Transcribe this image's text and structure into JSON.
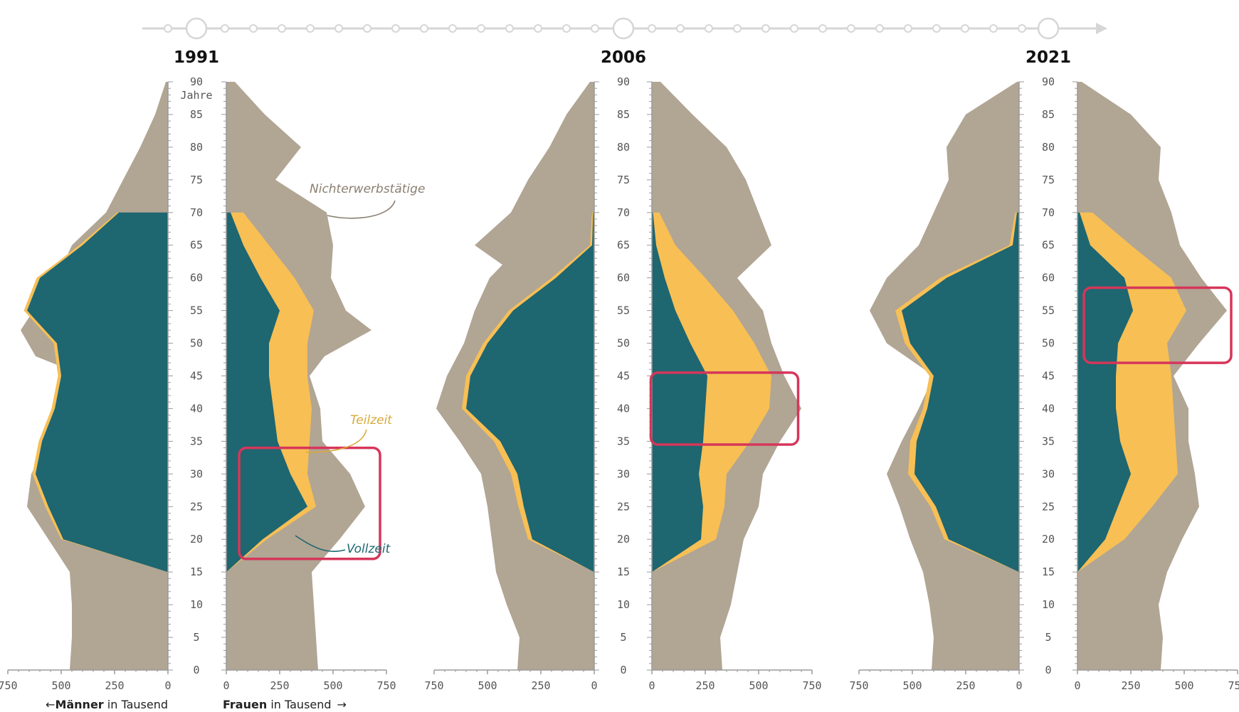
{
  "chart_data": {
    "type": "area",
    "layout": "population-pyramids",
    "colors": {
      "nichterwerbstaetige": "#b1a594",
      "teilzeit": "#f7bf54",
      "vollzeit": "#1e6670",
      "highlight": "#d6365a",
      "axis": "#9a9a9a",
      "timeline": "#d6d6d6"
    },
    "age_axis": {
      "ticks": [
        90,
        85,
        80,
        75,
        70,
        65,
        60,
        55,
        50,
        45,
        40,
        35,
        30,
        25,
        20,
        15,
        10,
        5,
        0
      ],
      "unit": "Jahre",
      "range": [
        0,
        90
      ]
    },
    "value_axis": {
      "men_ticks": [
        "750",
        "500",
        "250",
        "0"
      ],
      "women_ticks": [
        "0",
        "250",
        "500",
        "750"
      ],
      "range": [
        0,
        750
      ]
    },
    "axis_titles": {
      "men_bold": "Männer",
      "men_rest": " in Tausend",
      "men_arrow": "←",
      "women_bold": "Frauen",
      "women_rest": " in Tausend",
      "women_arrow": "→"
    },
    "annotations": {
      "nichterwerbstaetige": "Nichterwerbstätige",
      "teilzeit": "Teilzeit",
      "vollzeit": "Vollzeit"
    },
    "legend_labels_panel": 0,
    "ages": [
      15,
      20,
      25,
      30,
      35,
      40,
      45,
      50,
      55,
      60,
      65,
      70
    ],
    "panels": [
      {
        "year": "1991",
        "men_total": [
          [
            0,
            460
          ],
          [
            5,
            450
          ],
          [
            10,
            450
          ],
          [
            15,
            460
          ],
          [
            20,
            560
          ],
          [
            25,
            660
          ],
          [
            30,
            640
          ],
          [
            35,
            560
          ],
          [
            40,
            520
          ],
          [
            45,
            390
          ],
          [
            48,
            620
          ],
          [
            52,
            690
          ],
          [
            55,
            630
          ],
          [
            60,
            520
          ],
          [
            65,
            450
          ],
          [
            70,
            290
          ],
          [
            75,
            210
          ],
          [
            80,
            130
          ],
          [
            85,
            60
          ],
          [
            90,
            10
          ]
        ],
        "women_total": [
          [
            0,
            430
          ],
          [
            5,
            420
          ],
          [
            10,
            410
          ],
          [
            15,
            400
          ],
          [
            20,
            530
          ],
          [
            25,
            650
          ],
          [
            30,
            580
          ],
          [
            35,
            450
          ],
          [
            40,
            440
          ],
          [
            45,
            390
          ],
          [
            48,
            460
          ],
          [
            52,
            680
          ],
          [
            55,
            560
          ],
          [
            60,
            490
          ],
          [
            65,
            500
          ],
          [
            70,
            470
          ],
          [
            75,
            230
          ],
          [
            80,
            350
          ],
          [
            85,
            180
          ],
          [
            90,
            40
          ]
        ],
        "men": {
          "vollzeit": [
            0,
            490,
            560,
            620,
            590,
            530,
            500,
            520,
            660,
            600,
            400,
            230,
            50
          ],
          "teilzeit": [
            0,
            10,
            15,
            15,
            15,
            15,
            15,
            15,
            15,
            15,
            15,
            8,
            3
          ]
        },
        "women": {
          "vollzeit": [
            0,
            170,
            380,
            300,
            240,
            220,
            200,
            200,
            250,
            160,
            80,
            20,
            5
          ],
          "teilzeit": [
            0,
            20,
            40,
            80,
            150,
            180,
            180,
            180,
            160,
            160,
            120,
            60,
            20
          ]
        },
        "highlight": {
          "age_min": 17,
          "age_max": 34,
          "side": "women",
          "value_min": 60,
          "value_max": 720
        }
      },
      {
        "year": "2006",
        "men_total": [
          [
            0,
            360
          ],
          [
            5,
            350
          ],
          [
            10,
            410
          ],
          [
            15,
            460
          ],
          [
            20,
            480
          ],
          [
            25,
            500
          ],
          [
            30,
            530
          ],
          [
            35,
            630
          ],
          [
            40,
            740
          ],
          [
            45,
            690
          ],
          [
            50,
            610
          ],
          [
            55,
            560
          ],
          [
            60,
            490
          ],
          [
            62,
            430
          ],
          [
            65,
            560
          ],
          [
            70,
            390
          ],
          [
            75,
            310
          ],
          [
            80,
            210
          ],
          [
            85,
            130
          ],
          [
            90,
            20
          ]
        ],
        "women_total": [
          [
            0,
            330
          ],
          [
            5,
            320
          ],
          [
            10,
            370
          ],
          [
            15,
            400
          ],
          [
            20,
            430
          ],
          [
            25,
            500
          ],
          [
            30,
            520
          ],
          [
            35,
            600
          ],
          [
            40,
            700
          ],
          [
            45,
            620
          ],
          [
            50,
            560
          ],
          [
            55,
            520
          ],
          [
            60,
            400
          ],
          [
            65,
            560
          ],
          [
            70,
            500
          ],
          [
            75,
            440
          ],
          [
            80,
            350
          ],
          [
            85,
            190
          ],
          [
            90,
            40
          ]
        ],
        "men": {
          "vollzeit": [
            0,
            290,
            330,
            360,
            440,
            600,
            580,
            500,
            380,
            180,
            10,
            5,
            2
          ],
          "teilzeit": [
            0,
            20,
            25,
            30,
            30,
            20,
            20,
            20,
            20,
            20,
            10,
            5,
            2
          ]
        },
        "women": {
          "vollzeit": [
            0,
            230,
            240,
            220,
            240,
            250,
            260,
            180,
            110,
            60,
            20,
            5,
            2
          ],
          "teilzeit": [
            0,
            70,
            100,
            130,
            220,
            300,
            300,
            300,
            270,
            190,
            90,
            30,
            10
          ]
        },
        "highlight": {
          "age_min": 34.5,
          "age_max": 45.5,
          "side": "women",
          "value_min": -5,
          "value_max": 685
        }
      },
      {
        "year": "2021",
        "men_total": [
          [
            0,
            410
          ],
          [
            5,
            400
          ],
          [
            10,
            420
          ],
          [
            15,
            450
          ],
          [
            20,
            510
          ],
          [
            25,
            560
          ],
          [
            30,
            620
          ],
          [
            35,
            550
          ],
          [
            40,
            470
          ],
          [
            45,
            400
          ],
          [
            50,
            620
          ],
          [
            55,
            700
          ],
          [
            60,
            620
          ],
          [
            65,
            470
          ],
          [
            70,
            400
          ],
          [
            75,
            330
          ],
          [
            80,
            340
          ],
          [
            85,
            250
          ],
          [
            90,
            10
          ]
        ],
        "women_total": [
          [
            0,
            390
          ],
          [
            5,
            400
          ],
          [
            10,
            380
          ],
          [
            15,
            420
          ],
          [
            20,
            490
          ],
          [
            25,
            570
          ],
          [
            30,
            550
          ],
          [
            35,
            520
          ],
          [
            40,
            520
          ],
          [
            45,
            450
          ],
          [
            50,
            570
          ],
          [
            55,
            700
          ],
          [
            60,
            580
          ],
          [
            65,
            480
          ],
          [
            70,
            440
          ],
          [
            75,
            380
          ],
          [
            80,
            390
          ],
          [
            85,
            250
          ],
          [
            90,
            20
          ]
        ],
        "men": {
          "vollzeit": [
            0,
            330,
            390,
            490,
            480,
            430,
            400,
            510,
            550,
            340,
            30,
            10,
            2
          ],
          "teilzeit": [
            0,
            20,
            25,
            30,
            30,
            20,
            20,
            25,
            30,
            30,
            15,
            8,
            3
          ]
        },
        "women": {
          "vollzeit": [
            0,
            130,
            190,
            250,
            200,
            180,
            180,
            190,
            260,
            220,
            60,
            10,
            3
          ],
          "teilzeit": [
            0,
            90,
            160,
            220,
            260,
            270,
            260,
            230,
            250,
            220,
            190,
            60,
            20
          ]
        },
        "highlight": {
          "age_min": 47,
          "age_max": 58.5,
          "side": "women",
          "value_min": 30,
          "value_max": 720
        }
      }
    ]
  }
}
